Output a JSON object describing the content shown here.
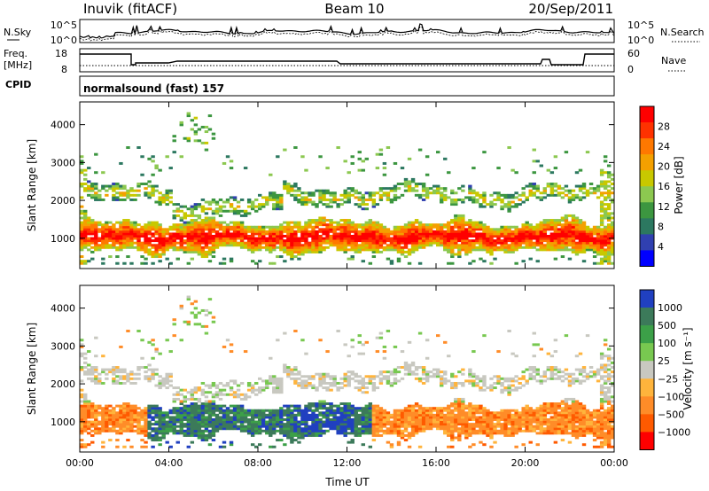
{
  "header": {
    "station": "Inuvik (fitACF)",
    "beam": "Beam 10",
    "date": "20/Sep/2011"
  },
  "sky_panel": {
    "left_label": "N.Sky",
    "left_ticks": [
      "10^5",
      "10^0"
    ],
    "right_ticks": [
      "10^5",
      "10^0"
    ],
    "right_label": "N.Search"
  },
  "freq_panel": {
    "left_label_1": "Freq.",
    "left_label_2": "[MHz]",
    "left_ticks": [
      "18",
      "8"
    ],
    "right_ticks": [
      "60",
      "0"
    ],
    "right_label": "Nave"
  },
  "cpid": {
    "label": "CPID",
    "value": "normalsound (fast) 157"
  },
  "chart_data": [
    {
      "type": "heatmap",
      "title": "",
      "ylabel": "Slant Range [km]",
      "xlabel": "",
      "ylim": [
        200,
        4600
      ],
      "yticks": [
        "1000",
        "2000",
        "3000",
        "4000"
      ],
      "colorbar": {
        "label": "Power [dB]",
        "ticks": [
          "28",
          "24",
          "20",
          "16",
          "12",
          "8",
          "4"
        ],
        "colors": [
          "#ff0000",
          "#ff3200",
          "#ff7800",
          "#f4a000",
          "#c8c800",
          "#8cc850",
          "#3c9640",
          "#2c7860",
          "#3040b0",
          "#0000ff"
        ]
      }
    },
    {
      "type": "heatmap",
      "title": "",
      "ylabel": "Slant Range [km]",
      "xlabel": "Time UT",
      "ylim": [
        200,
        4600
      ],
      "yticks": [
        "1000",
        "2000",
        "3000",
        "4000"
      ],
      "xticks": [
        "00:00",
        "04:00",
        "08:00",
        "12:00",
        "16:00",
        "20:00",
        "00:00"
      ],
      "colorbar": {
        "label": "Velocity [m s⁻¹]",
        "ticks": [
          "1000",
          "500",
          "100",
          "25",
          "−25",
          "−100",
          "−500",
          "−1000"
        ],
        "colors": [
          "#2040c0",
          "#3c7a5a",
          "#3ca048",
          "#78c850",
          "#c8c8c0",
          "#ffb43c",
          "#ff8c28",
          "#ff5a00",
          "#ff0000"
        ]
      }
    }
  ]
}
